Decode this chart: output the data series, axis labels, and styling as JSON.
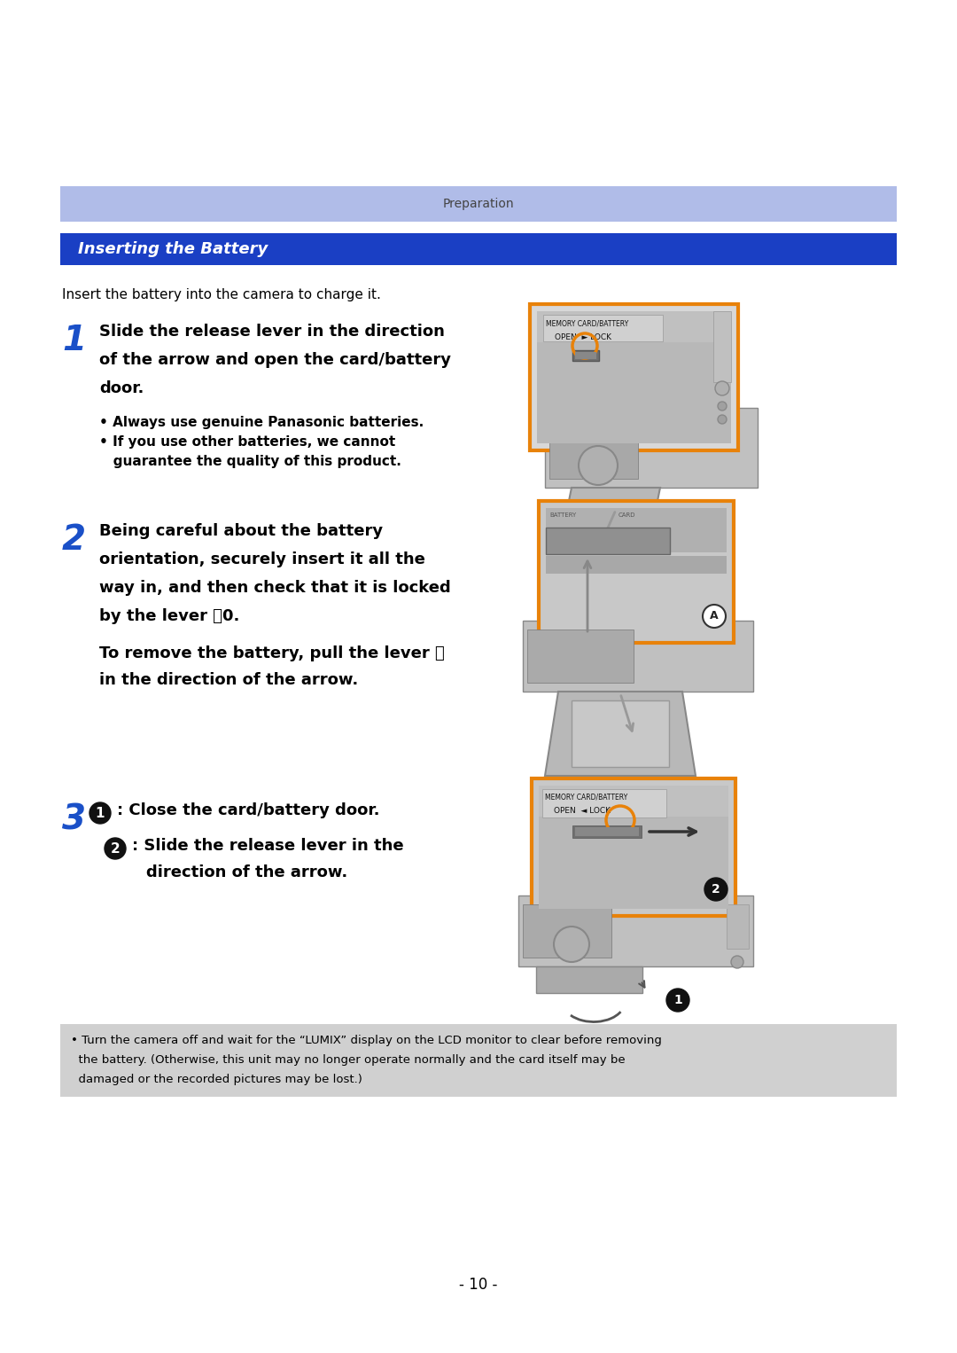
{
  "page_bg": "#ffffff",
  "header_bg": "#b0bce8",
  "header_text": "Preparation",
  "header_text_color": "#444444",
  "title_bg": "#1a3fc4",
  "title_text": "Inserting the Battery",
  "title_text_color": "#ffffff",
  "intro_text": "Insert the battery into the camera to charge it.",
  "step1_num_color": "#1a50c8",
  "step2_num_color": "#1a50c8",
  "step3_num_color": "#1a50c8",
  "step1_lines": [
    "Slide the release lever in the direction",
    "of the arrow and open the card/battery",
    "door."
  ],
  "step1_bullets": [
    "• Always use genuine Panasonic batteries.",
    "• If you use other batteries, we cannot",
    "   guarantee the quality of this product."
  ],
  "step2_bold_lines": [
    "Being careful about the battery",
    "orientation, securely insert it all the",
    "way in, and then check that it is locked",
    "by the lever ⑀0."
  ],
  "step2_normal_lines": [
    "To remove the battery, pull the lever ⑀",
    "in the direction of the arrow."
  ],
  "step3_line1": "❶: Close the card/battery door.",
  "step3_line2a": "❷: Slide the release lever in the",
  "step3_line2b": "      direction of the arrow.",
  "note_lines": [
    "• Turn the camera off and wait for the “LUMIX” display on the LCD monitor to clear before removing",
    "  the battery. (Otherwise, this unit may no longer operate normally and the card itself may be",
    "  damaged or the recorded pictures may be lost.)"
  ],
  "page_number": "- 10 -",
  "orange": "#e8820a",
  "cam_light": "#c8c8c8",
  "cam_med": "#a8a8a8",
  "cam_dark": "#888888",
  "cam_darkest": "#606060",
  "note_bg": "#d0d0d0"
}
